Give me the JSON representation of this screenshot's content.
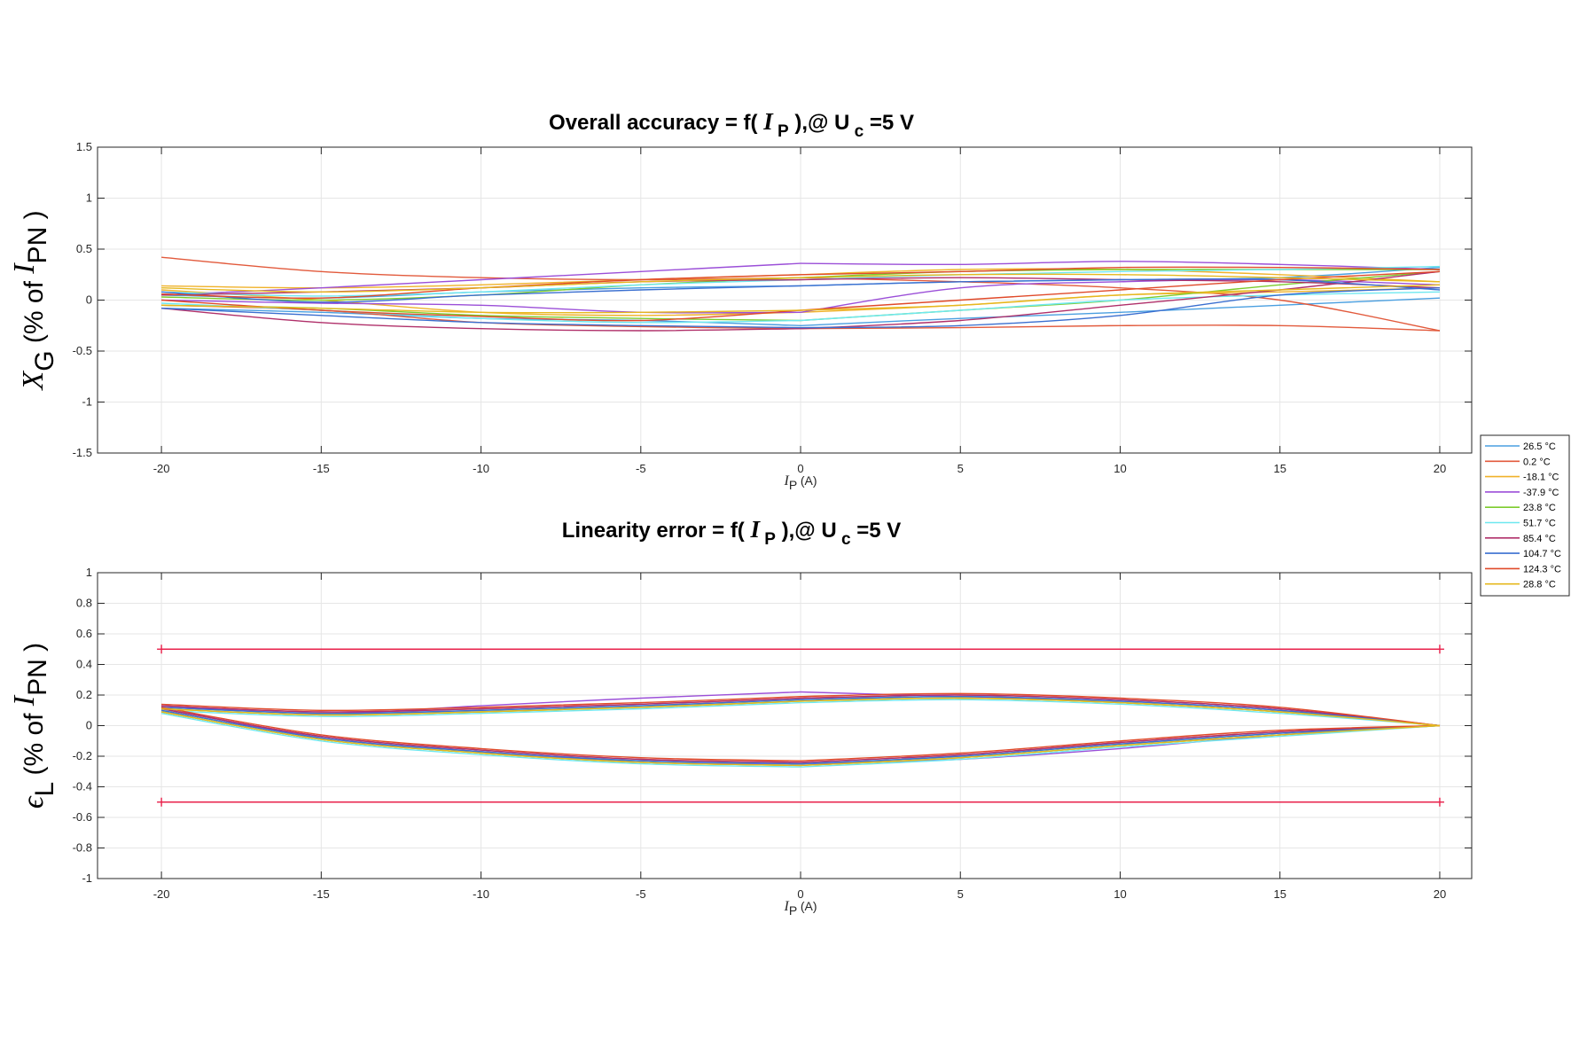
{
  "chart_data": [
    {
      "type": "line",
      "title": "Overall accuracy = f( I P ),@ U c =5 V",
      "title_parts": {
        "lead": "Overall accuracy = f(",
        "var": "I",
        "var_sub": "P",
        "mid": "),@ U",
        "mid_sub": "c",
        "tail": "=5 V"
      },
      "ylabel_parts": {
        "sym": "X",
        "sym_sub": "G",
        "mid": "(% of",
        "var": "I",
        "var_sub": "PN",
        "tail": ")"
      },
      "xlabel_parts": {
        "var": "I",
        "var_sub": "P",
        "unit": "(A)"
      },
      "xlim": [
        -22,
        21
      ],
      "ylim": [
        -1.5,
        1.5
      ],
      "xticks": [
        -20,
        -15,
        -10,
        -5,
        0,
        5,
        10,
        15,
        20
      ],
      "yticks": [
        -1.5,
        -1,
        -0.5,
        0,
        0.5,
        1,
        1.5
      ],
      "ytick_labels": [
        "-1.5",
        "-1",
        "-0.5",
        "0",
        "0.5",
        "1",
        "1.5"
      ],
      "grid": true,
      "x": [
        -20,
        -15,
        -10,
        -5,
        0,
        5,
        10,
        15,
        20
      ],
      "series": [
        {
          "name": "26.5 °C",
          "color": "#4a9fe0",
          "up": [
            -0.08,
            -0.12,
            -0.18,
            -0.2,
            -0.25,
            -0.18,
            -0.12,
            -0.05,
            0.02
          ],
          "down": [
            0.05,
            0.02,
            0.08,
            0.12,
            0.14,
            0.18,
            0.2,
            0.22,
            0.32
          ]
        },
        {
          "name": "0.2 °C",
          "color": "#e25a3c",
          "up": [
            0.42,
            0.28,
            0.22,
            0.2,
            0.22,
            0.18,
            0.12,
            0.0,
            -0.3
          ],
          "down": [
            -0.05,
            -0.1,
            -0.22,
            -0.26,
            -0.28,
            -0.27,
            -0.25,
            -0.25,
            -0.3
          ]
        },
        {
          "name": "-18.1 °C",
          "color": "#f0b22a",
          "up": [
            0.14,
            0.12,
            0.15,
            0.2,
            0.25,
            0.3,
            0.3,
            0.25,
            0.18
          ],
          "down": [
            0.1,
            0.0,
            -0.12,
            -0.15,
            -0.12,
            -0.05,
            0.05,
            0.08,
            0.12
          ]
        },
        {
          "name": "-37.9 °C",
          "color": "#9b4fd8",
          "up": [
            0.05,
            0.12,
            0.2,
            0.28,
            0.36,
            0.35,
            0.38,
            0.35,
            0.3
          ],
          "down": [
            0.0,
            -0.03,
            -0.05,
            -0.12,
            -0.12,
            0.12,
            0.18,
            0.2,
            0.15
          ]
        },
        {
          "name": "23.8 °C",
          "color": "#7dcc2e",
          "up": [
            -0.05,
            -0.08,
            -0.15,
            -0.18,
            -0.2,
            -0.1,
            0.0,
            0.15,
            0.28
          ],
          "down": [
            0.03,
            0.0,
            0.05,
            0.15,
            0.22,
            0.28,
            0.3,
            0.3,
            0.3
          ]
        },
        {
          "name": "51.7 °C",
          "color": "#6ee8f0",
          "up": [
            0.08,
            0.04,
            0.08,
            0.15,
            0.2,
            0.25,
            0.28,
            0.3,
            0.33
          ],
          "down": [
            -0.03,
            -0.1,
            -0.18,
            -0.22,
            -0.2,
            -0.1,
            0.0,
            0.05,
            0.08
          ]
        },
        {
          "name": "85.4 °C",
          "color": "#b0306a",
          "up": [
            -0.08,
            -0.22,
            -0.28,
            -0.3,
            -0.28,
            -0.2,
            -0.05,
            0.1,
            0.28
          ],
          "down": [
            0.05,
            0.08,
            0.12,
            0.18,
            0.2,
            0.22,
            0.2,
            0.18,
            0.12
          ]
        },
        {
          "name": "104.7 °C",
          "color": "#3a6fd0",
          "up": [
            0.08,
            -0.02,
            0.05,
            0.1,
            0.14,
            0.18,
            0.2,
            0.2,
            0.1
          ],
          "down": [
            -0.08,
            -0.15,
            -0.22,
            -0.25,
            -0.27,
            -0.25,
            -0.15,
            0.05,
            0.12
          ]
        },
        {
          "name": "124.3 °C",
          "color": "#e04a2a",
          "up": [
            0.0,
            -0.1,
            -0.16,
            -0.2,
            -0.1,
            0.0,
            0.1,
            0.2,
            0.28
          ],
          "down": [
            0.06,
            0.02,
            0.12,
            0.2,
            0.25,
            0.28,
            0.32,
            0.32,
            0.3
          ]
        },
        {
          "name": "28.8 °C",
          "color": "#e6b81e",
          "up": [
            0.12,
            0.08,
            0.12,
            0.18,
            0.22,
            0.25,
            0.25,
            0.22,
            0.18
          ],
          "down": [
            -0.05,
            -0.08,
            -0.12,
            -0.12,
            -0.1,
            -0.05,
            0.05,
            0.1,
            0.15
          ]
        }
      ]
    },
    {
      "type": "line",
      "title": "Linearity error = f( I P ),@ U c =5 V",
      "title_parts": {
        "lead": "Linearity error = f(",
        "var": "I",
        "var_sub": "P",
        "mid": "),@ U",
        "mid_sub": "c",
        "tail": "=5 V"
      },
      "ylabel_parts": {
        "sym": "ϵ",
        "sym_sub": "L",
        "mid": "(% of",
        "var": "I",
        "var_sub": "PN",
        "tail": ")"
      },
      "xlabel_parts": {
        "var": "I",
        "var_sub": "P",
        "unit": "(A)"
      },
      "xlim": [
        -22,
        21
      ],
      "ylim": [
        -1,
        1
      ],
      "xticks": [
        -20,
        -15,
        -10,
        -5,
        0,
        5,
        10,
        15,
        20
      ],
      "yticks": [
        -1,
        -0.8,
        -0.6,
        -0.4,
        -0.2,
        0,
        0.2,
        0.4,
        0.6,
        0.8,
        1
      ],
      "ytick_labels": [
        "-1",
        "-0.8",
        "-0.6",
        "-0.4",
        "-0.2",
        "0",
        "0.2",
        "0.4",
        "0.6",
        "0.8",
        "1"
      ],
      "grid": true,
      "limits": {
        "values": [
          0.5,
          -0.5
        ],
        "x": [
          -20,
          20
        ],
        "color": "#e8204a"
      },
      "x": [
        -20,
        -15,
        -10,
        -5,
        0,
        5,
        10,
        15,
        20
      ],
      "upper_shape": [
        0.12,
        0.08,
        0.1,
        0.13,
        0.17,
        0.19,
        0.16,
        0.1,
        0.0
      ],
      "lower_shape": [
        0.1,
        -0.08,
        -0.17,
        -0.23,
        -0.25,
        -0.2,
        -0.12,
        -0.05,
        0.0
      ],
      "series": [
        {
          "name": "26.5 °C",
          "color": "#4a9fe0",
          "offset": 0.0
        },
        {
          "name": "0.2 °C",
          "color": "#e25a3c",
          "offset": 0.01
        },
        {
          "name": "-18.1 °C",
          "color": "#f0b22a",
          "offset": -0.01
        },
        {
          "name": "-37.9 °C",
          "color": "#9b4fd8",
          "offset": 0.02,
          "upper_override": [
            0.13,
            0.08,
            0.13,
            0.18,
            0.22,
            0.19,
            0.16,
            0.1,
            0.0
          ],
          "lower_override": [
            0.12,
            -0.08,
            -0.17,
            -0.24,
            -0.25,
            -0.22,
            -0.15,
            -0.06,
            0.0
          ]
        },
        {
          "name": "23.8 °C",
          "color": "#7dcc2e",
          "offset": -0.01
        },
        {
          "name": "51.7 °C",
          "color": "#6ee8f0",
          "offset": -0.02
        },
        {
          "name": "85.4 °C",
          "color": "#b0306a",
          "offset": 0.01
        },
        {
          "name": "104.7 °C",
          "color": "#3a6fd0",
          "offset": 0.0
        },
        {
          "name": "124.3 °C",
          "color": "#e04a2a",
          "offset": 0.02
        },
        {
          "name": "28.8 °C",
          "color": "#e6b81e",
          "offset": -0.01
        }
      ]
    }
  ]
}
